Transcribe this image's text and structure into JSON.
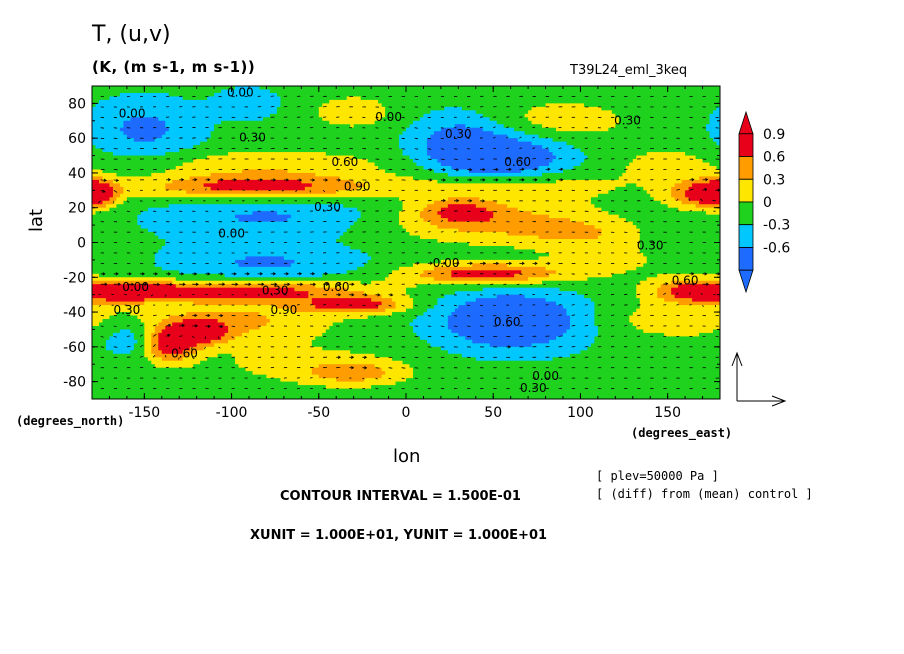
{
  "chart_data": {
    "type": "heatmap",
    "title": "T, (u,v)",
    "subtitle": "(K, (m s-1, m s-1))",
    "experiment": "T39L24_eml_3keq",
    "xlabel": "lon",
    "ylabel": "lat",
    "xunit_label": "(degrees_east)",
    "yunit_label": "(degrees_north)",
    "xlim": [
      -180,
      180
    ],
    "ylim": [
      -90,
      90
    ],
    "xticks": [
      -150,
      -100,
      -50,
      0,
      50,
      100,
      150
    ],
    "yticks": [
      -80,
      -60,
      -40,
      -20,
      0,
      20,
      40,
      60,
      80
    ],
    "colorbar": {
      "levels": [
        -0.6,
        -0.3,
        0,
        0.3,
        0.6,
        0.9
      ],
      "labels": [
        "-0.6",
        "-0.3",
        "0",
        "0.3",
        "0.6",
        "0.9"
      ],
      "colors": [
        "#1e6bff",
        "#00c8ff",
        "#1ed21e",
        "#ffe600",
        "#ff9c00",
        "#e8001a"
      ],
      "extend": "both"
    },
    "contour_labels": [
      {
        "text": "0.00",
        "lon": -157,
        "lat": 74
      },
      {
        "text": "0.00",
        "lon": -95,
        "lat": 86
      },
      {
        "text": "0.30",
        "lon": -88,
        "lat": 60
      },
      {
        "text": "0.00",
        "lon": -10,
        "lat": 72
      },
      {
        "text": "0.30",
        "lon": 30,
        "lat": 62
      },
      {
        "text": "0.60",
        "lon": 64,
        "lat": 46
      },
      {
        "text": "0.30",
        "lon": 127,
        "lat": 70
      },
      {
        "text": "0.60",
        "lon": -35,
        "lat": 46
      },
      {
        "text": "0.90",
        "lon": -28,
        "lat": 32
      },
      {
        "text": "0.30",
        "lon": -45,
        "lat": 20
      },
      {
        "text": "0.00",
        "lon": -100,
        "lat": 5
      },
      {
        "text": "0.00",
        "lon": 23,
        "lat": -12
      },
      {
        "text": "0.30",
        "lon": 140,
        "lat": -2
      },
      {
        "text": "0.60",
        "lon": 160,
        "lat": -22
      },
      {
        "text": "0.00",
        "lon": -155,
        "lat": -26
      },
      {
        "text": "0.30",
        "lon": -160,
        "lat": -39
      },
      {
        "text": "0.30",
        "lon": -75,
        "lat": -28
      },
      {
        "text": "0.60",
        "lon": -40,
        "lat": -26
      },
      {
        "text": "0.90",
        "lon": -70,
        "lat": -39
      },
      {
        "text": "0.60",
        "lon": 58,
        "lat": -46
      },
      {
        "text": "0.60",
        "lon": -127,
        "lat": -64
      },
      {
        "text": "0.00",
        "lon": 80,
        "lat": -77
      },
      {
        "text": "0.30",
        "lon": 73,
        "lat": -84
      }
    ],
    "field_centers": [
      {
        "lon": -150,
        "lat": 65,
        "value": -0.5,
        "rx": 32,
        "ry": 18
      },
      {
        "lon": -90,
        "lat": 80,
        "value": -0.3,
        "rx": 20,
        "ry": 10
      },
      {
        "lon": 30,
        "lat": 60,
        "value": -0.45,
        "rx": 28,
        "ry": 16
      },
      {
        "lon": 55,
        "lat": 48,
        "value": -0.85,
        "rx": 38,
        "ry": 14
      },
      {
        "lon": -80,
        "lat": 45,
        "value": 0.4,
        "rx": 70,
        "ry": 8
      },
      {
        "lon": -85,
        "lat": 32,
        "value": 1.0,
        "rx": 65,
        "ry": 7
      },
      {
        "lon": 60,
        "lat": 33,
        "value": 0.45,
        "rx": 60,
        "ry": 9
      },
      {
        "lon": 170,
        "lat": 28,
        "value": 0.9,
        "rx": 20,
        "ry": 8
      },
      {
        "lon": -178,
        "lat": 28,
        "value": 0.85,
        "rx": 12,
        "ry": 8
      },
      {
        "lon": -80,
        "lat": 15,
        "value": -0.45,
        "rx": 65,
        "ry": 12
      },
      {
        "lon": 90,
        "lat": 70,
        "value": 0.35,
        "rx": 40,
        "ry": 12
      },
      {
        "lon": 50,
        "lat": 12,
        "value": 0.6,
        "rx": 60,
        "ry": 12
      },
      {
        "lon": 30,
        "lat": 18,
        "value": 0.6,
        "rx": 22,
        "ry": 7
      },
      {
        "lon": 120,
        "lat": -10,
        "value": 0.2,
        "rx": 50,
        "ry": 12
      },
      {
        "lon": 100,
        "lat": 5,
        "value": 0.35,
        "rx": 30,
        "ry": 8
      },
      {
        "lon": -110,
        "lat": 0,
        "value": -0.05,
        "rx": 80,
        "ry": 10
      },
      {
        "lon": -80,
        "lat": -12,
        "value": -0.45,
        "rx": 55,
        "ry": 10
      },
      {
        "lon": 45,
        "lat": -18,
        "value": 1.0,
        "rx": 45,
        "ry": 6
      },
      {
        "lon": 165,
        "lat": -28,
        "value": 0.9,
        "rx": 22,
        "ry": 7
      },
      {
        "lon": -100,
        "lat": -28,
        "value": 1.0,
        "rx": 75,
        "ry": 6
      },
      {
        "lon": -160,
        "lat": -28,
        "value": 0.85,
        "rx": 22,
        "ry": 6
      },
      {
        "lon": -30,
        "lat": -36,
        "value": 0.95,
        "rx": 30,
        "ry": 5
      },
      {
        "lon": 60,
        "lat": -45,
        "value": -0.9,
        "rx": 42,
        "ry": 17
      },
      {
        "lon": -160,
        "lat": -55,
        "value": -0.4,
        "rx": 15,
        "ry": 10
      },
      {
        "lon": -100,
        "lat": -45,
        "value": 0.55,
        "rx": 55,
        "ry": 12
      },
      {
        "lon": -120,
        "lat": -52,
        "value": 0.95,
        "rx": 18,
        "ry": 7
      },
      {
        "lon": -135,
        "lat": -60,
        "value": 0.95,
        "rx": 14,
        "ry": 9
      },
      {
        "lon": -30,
        "lat": -75,
        "value": 0.55,
        "rx": 28,
        "ry": 7
      },
      {
        "lon": 140,
        "lat": -60,
        "value": -0.05,
        "rx": 30,
        "ry": 20
      },
      {
        "lon": -60,
        "lat": -70,
        "value": 0.25,
        "rx": 60,
        "ry": 12
      },
      {
        "lon": 150,
        "lat": -45,
        "value": 0.35,
        "rx": 40,
        "ry": 12
      },
      {
        "lon": -30,
        "lat": 75,
        "value": 0.35,
        "rx": 25,
        "ry": 10
      },
      {
        "lon": 150,
        "lat": 45,
        "value": 0.3,
        "rx": 30,
        "ry": 10
      }
    ],
    "reference_vector_label": ""
  },
  "footer": {
    "contour_interval": "CONTOUR INTERVAL = 1.500E-01",
    "units": "XUNIT = 1.000E+01, YUNIT = 1.000E+01",
    "level": "[ plev=50000 Pa ]",
    "diff": "[ (diff) from (mean) control ]"
  }
}
